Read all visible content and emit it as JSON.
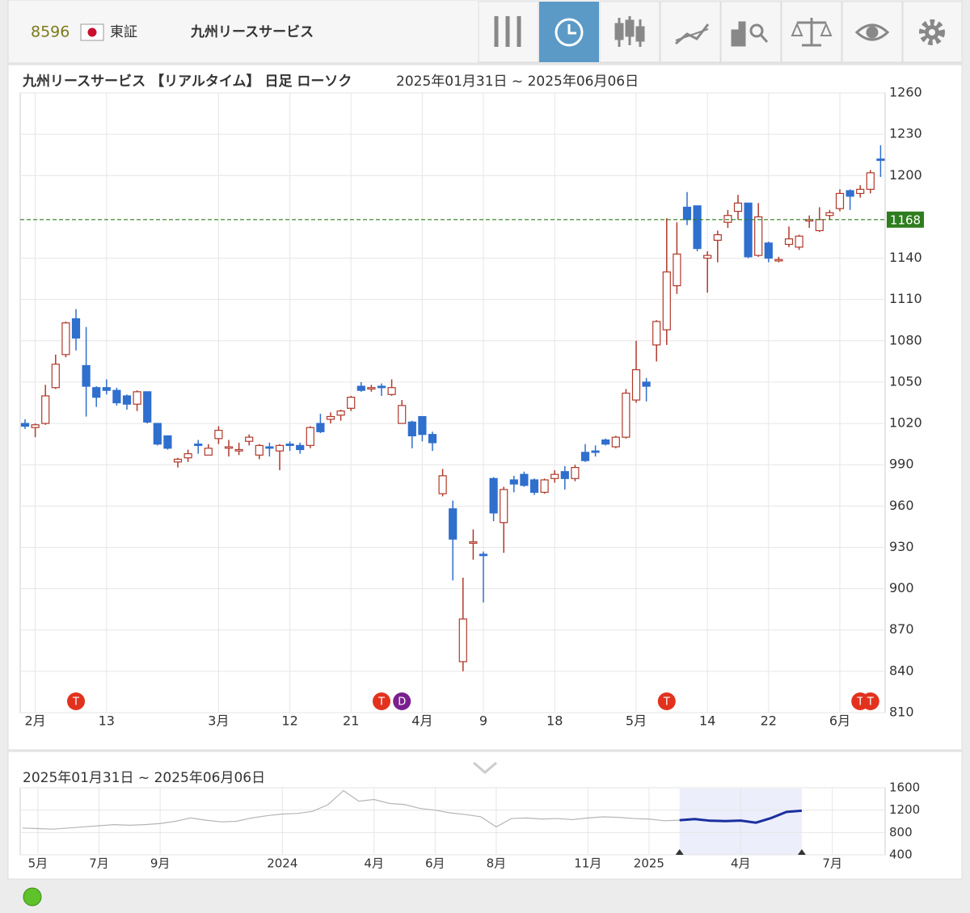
{
  "header": {
    "code": "8596",
    "market": "東証",
    "name": "九州リースサービス"
  },
  "chart_data": [
    {
      "type": "candlestick",
      "title": "九州リースサービス 【リアルタイム】 日足 ローソク",
      "subtitle": "2025年01月31日 ~ 2025年06月06日",
      "categories": [
        null,
        "2月",
        null,
        null,
        null,
        null,
        null,
        null,
        "13",
        null,
        null,
        null,
        null,
        null,
        null,
        null,
        null,
        null,
        null,
        "3月",
        null,
        null,
        null,
        null,
        null,
        null,
        "12",
        null,
        null,
        null,
        null,
        null,
        "21",
        null,
        null,
        null,
        null,
        null,
        null,
        "4月",
        null,
        null,
        null,
        null,
        null,
        "9",
        null,
        null,
        null,
        null,
        null,
        null,
        "18",
        null,
        null,
        null,
        null,
        null,
        null,
        null,
        "5月",
        null,
        null,
        null,
        null,
        null,
        null,
        "14",
        null,
        null,
        null,
        null,
        null,
        "22",
        null,
        null,
        null,
        null,
        null,
        null,
        "6月",
        null,
        null,
        null,
        null
      ],
      "open": [
        1020,
        1017,
        1020,
        1046,
        1070,
        1096,
        1062,
        1046,
        1046,
        1044,
        1040,
        1034,
        1043,
        1020,
        1011,
        992,
        995,
        1005,
        997,
        1009,
        1002,
        1000,
        1007,
        997,
        1003,
        1000,
        1005,
        1004,
        1004,
        1020,
        1023,
        1026,
        1031,
        1047,
        1045,
        1047,
        1041,
        1020,
        1021,
        1025,
        1012,
        969,
        958,
        847,
        933,
        925,
        980,
        948,
        979,
        983,
        979,
        970,
        980,
        985,
        980,
        999,
        1000,
        1008,
        1003,
        1010,
        1037,
        1050,
        1077,
        1088,
        1120,
        1177,
        1178,
        1140,
        1153,
        1166,
        1174,
        1180,
        1142,
        1151,
        1138,
        1150,
        1148,
        1167,
        1160,
        1171,
        1176,
        1189,
        1187,
        1190,
        1212
      ],
      "high": [
        1023,
        1020,
        1048,
        1070,
        1094,
        1103,
        1090,
        1047,
        1052,
        1046,
        1041,
        1044,
        1043,
        1020,
        1011,
        995,
        1001,
        1008,
        1005,
        1018,
        1008,
        1006,
        1012,
        1005,
        1006,
        1005,
        1007,
        1006,
        1018,
        1027,
        1028,
        1030,
        1040,
        1050,
        1048,
        1049,
        1052,
        1037,
        1022,
        1025,
        1014,
        987,
        964,
        908,
        943,
        927,
        981,
        974,
        982,
        985,
        980,
        980,
        986,
        989,
        990,
        1005,
        1004,
        1009,
        1011,
        1045,
        1080,
        1053,
        1095,
        1169,
        1166,
        1188,
        1178,
        1145,
        1160,
        1175,
        1186,
        1180,
        1180,
        1152,
        1141,
        1163,
        1157,
        1171,
        1177,
        1175,
        1190,
        1190,
        1193,
        1204,
        1222
      ],
      "low": [
        1016,
        1010,
        1019,
        1045,
        1068,
        1073,
        1025,
        1032,
        1041,
        1033,
        1030,
        1029,
        1020,
        1004,
        1001,
        988,
        992,
        998,
        997,
        1005,
        996,
        997,
        1004,
        994,
        996,
        986,
        1000,
        998,
        1002,
        1013,
        1020,
        1022,
        1029,
        1043,
        1043,
        1040,
        1040,
        1020,
        1002,
        1007,
        1000,
        967,
        906,
        840,
        921,
        890,
        949,
        926,
        970,
        974,
        968,
        969,
        977,
        972,
        978,
        992,
        996,
        1004,
        1002,
        1009,
        1035,
        1036,
        1065,
        1077,
        1114,
        1164,
        1145,
        1115,
        1137,
        1162,
        1168,
        1140,
        1141,
        1137,
        1137,
        1148,
        1146,
        1162,
        1159,
        1168,
        1174,
        1175,
        1184,
        1187,
        1199
      ],
      "close": [
        1018,
        1019,
        1040,
        1063,
        1093,
        1082,
        1047,
        1039,
        1044,
        1035,
        1034,
        1043,
        1021,
        1005,
        1002,
        994,
        998,
        1004,
        1002,
        1015,
        1003,
        1001,
        1010,
        1004,
        1002,
        1004,
        1004,
        1001,
        1017,
        1014,
        1025,
        1029,
        1039,
        1044,
        1046,
        1046,
        1046,
        1033,
        1011,
        1012,
        1006,
        982,
        936,
        878,
        934,
        924,
        955,
        972,
        976,
        975,
        970,
        979,
        983,
        980,
        988,
        993,
        999,
        1005,
        1010,
        1042,
        1059,
        1047,
        1094,
        1130,
        1143,
        1168,
        1147,
        1142,
        1157,
        1171,
        1180,
        1141,
        1170,
        1140,
        1139,
        1154,
        1156,
        1168,
        1168,
        1173,
        1187,
        1185,
        1190,
        1202,
        1211
      ],
      "up_color": "#b0392b",
      "down_color": "#2f6fce",
      "events": [
        null,
        null,
        null,
        null,
        null,
        "T",
        null,
        null,
        null,
        null,
        null,
        null,
        null,
        null,
        null,
        null,
        null,
        null,
        null,
        null,
        null,
        null,
        null,
        null,
        null,
        null,
        null,
        null,
        null,
        null,
        null,
        null,
        null,
        null,
        null,
        "T",
        null,
        "D",
        null,
        null,
        null,
        null,
        null,
        null,
        null,
        null,
        null,
        null,
        null,
        null,
        null,
        null,
        null,
        null,
        null,
        null,
        null,
        null,
        null,
        null,
        null,
        null,
        null,
        "T",
        null,
        null,
        null,
        null,
        null,
        null,
        null,
        null,
        null,
        null,
        null,
        null,
        null,
        null,
        null,
        null,
        null,
        null,
        "T",
        "T",
        null
      ],
      "event_colors": {
        "T": "#e2321e",
        "D": "#7a1f8e"
      },
      "reference_line": 1168,
      "reference_color": "#2e7d1e",
      "ylim": [
        810,
        1260
      ],
      "yticks": [
        810,
        840,
        870,
        900,
        930,
        960,
        990,
        1020,
        1050,
        1080,
        1110,
        1140,
        1200,
        1230,
        1260
      ],
      "grid": true
    },
    {
      "type": "line",
      "title": "2025年01月31日 ~ 2025年06月06日",
      "categories": [
        null,
        "5月",
        null,
        null,
        null,
        "7月",
        null,
        null,
        null,
        "9月",
        null,
        null,
        null,
        null,
        null,
        null,
        null,
        "2024",
        null,
        null,
        null,
        null,
        null,
        "4月",
        null,
        null,
        null,
        "6月",
        null,
        null,
        null,
        "8月",
        null,
        null,
        null,
        null,
        null,
        "11月",
        null,
        null,
        null,
        "2025",
        null,
        null,
        null,
        null,
        null,
        "4月",
        null,
        null,
        null,
        null,
        null,
        "7月",
        null,
        null,
        null
      ],
      "series": [
        {
          "color": "#b5b5b5",
          "values": [
            880,
            870,
            860,
            880,
            900,
            920,
            940,
            930,
            940,
            960,
            1000,
            1060,
            1020,
            990,
            1000,
            1060,
            1100,
            1130,
            1140,
            1180,
            1300,
            1550,
            1360,
            1390,
            1320,
            1300,
            1230,
            1200,
            1150,
            1120,
            1080,
            900,
            1050,
            1060,
            1040,
            1050,
            1030,
            1060,
            1080,
            1070,
            1050,
            1040,
            1010,
            1020,
            null,
            null,
            null,
            null,
            null,
            null,
            null,
            null,
            null,
            null,
            null,
            null,
            null
          ]
        },
        {
          "color": "#1a2fa0",
          "values": [
            null,
            null,
            null,
            null,
            null,
            null,
            null,
            null,
            null,
            null,
            null,
            null,
            null,
            null,
            null,
            null,
            null,
            null,
            null,
            null,
            null,
            null,
            null,
            null,
            null,
            null,
            null,
            null,
            null,
            null,
            null,
            null,
            null,
            null,
            null,
            null,
            null,
            null,
            null,
            null,
            null,
            null,
            null,
            1020,
            1040,
            1010,
            1004,
            1012,
            975,
            1059,
            1168,
            1190,
            null,
            null,
            null,
            null,
            null
          ]
        }
      ],
      "selection_color": "#eceefb",
      "ylim": [
        400,
        1600
      ],
      "yticks": [
        400,
        800,
        1200,
        1600
      ],
      "grid": true
    }
  ]
}
